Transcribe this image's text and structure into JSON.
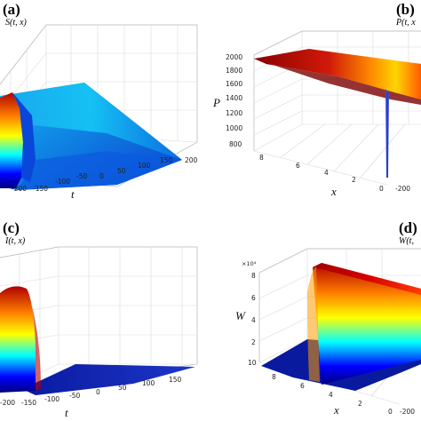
{
  "figure": {
    "panels": [
      {
        "label": "(a)",
        "title": "S(t, x)"
      },
      {
        "label": "(b)",
        "title": "P(t, x"
      },
      {
        "label": "(c)",
        "title": "I(t, x)"
      },
      {
        "label": "(d)",
        "title": "W(t,"
      }
    ]
  },
  "chart_data": [
    {
      "type": "surface",
      "panel": "(a)",
      "title": "S(t, x)",
      "xlabel": "t",
      "x_ticks": [
        "-200",
        "-150",
        "-100",
        "-50",
        "0",
        "50",
        "100",
        "150",
        "200"
      ],
      "colormap": "jet",
      "grid": true
    },
    {
      "type": "surface",
      "panel": "(b)",
      "title": "P(t, x",
      "xlabel": "x",
      "zlabel": "P",
      "x_ticks": [
        "8",
        "6",
        "4",
        "2",
        "0"
      ],
      "y_ticks": [
        "-200"
      ],
      "z_ticks": [
        "800",
        "1000",
        "1200",
        "1400",
        "1600",
        "1800",
        "2000"
      ],
      "zlim": [
        800,
        2000
      ],
      "colormap": "jet",
      "grid": true
    },
    {
      "type": "surface",
      "panel": "(c)",
      "title": "I(t, x)",
      "xlabel": "t",
      "x_ticks": [
        "-200",
        "-150",
        "-100",
        "-50",
        "0",
        "50",
        "100",
        "150"
      ],
      "colormap": "jet",
      "grid": true
    },
    {
      "type": "surface",
      "panel": "(d)",
      "title": "W(t,",
      "xlabel": "x",
      "zlabel": "W",
      "z_exponent": "×10⁴",
      "x_ticks": [
        "8",
        "6",
        "4",
        "2",
        "0"
      ],
      "y_ticks": [
        "-200"
      ],
      "z_ticks": [
        "10",
        "2",
        "4",
        "6",
        "8"
      ],
      "colormap": "jet",
      "grid": true
    }
  ]
}
